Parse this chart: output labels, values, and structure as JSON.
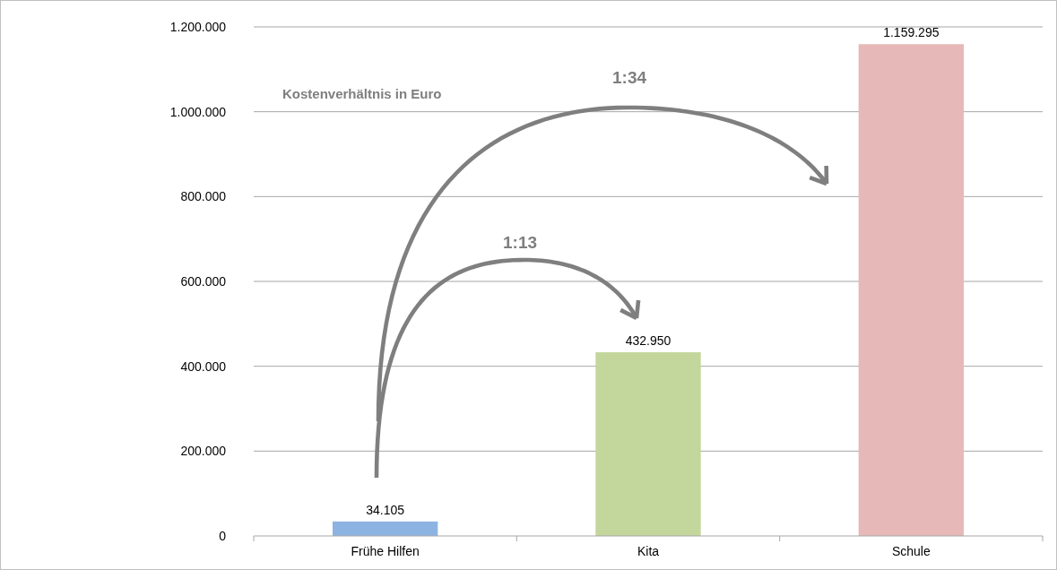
{
  "chart_data": {
    "type": "bar",
    "categories": [
      "Frühe Hilfen",
      "Kita",
      "Schule"
    ],
    "values": [
      34105,
      432950,
      1159295
    ],
    "colors": [
      "#8db3e2",
      "#c3d69b",
      "#e6b9b8"
    ],
    "value_labels": [
      "34.105",
      "432.950",
      "1.159.295"
    ],
    "ylim": [
      0,
      1200000
    ],
    "yticks": [
      0,
      {
        "value": 200000,
        "label": "200.000"
      },
      {
        "value": 400000,
        "label": "400.000"
      },
      {
        "value": 600000,
        "label": "600.000"
      },
      {
        "value": 800000,
        "label": "800.000"
      },
      {
        "value": 1000000,
        "label": "1.000.000"
      },
      {
        "value": 1200000,
        "label": "1.200.000"
      }
    ],
    "grid": "y",
    "annotations": [
      "Kostenverhältnis in Euro",
      "1:13",
      "1:34"
    ]
  }
}
